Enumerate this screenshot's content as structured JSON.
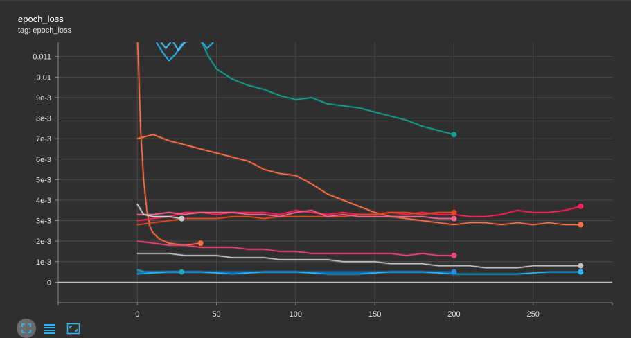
{
  "panel": {
    "title": "epoch_loss",
    "tag_line": "tag: epoch_loss"
  },
  "toolbar": {
    "buttons": [
      {
        "icon": "fullscreen-icon",
        "active": true
      },
      {
        "icon": "data-table-icon",
        "active": false
      },
      {
        "icon": "fit-domain-icon",
        "active": false
      }
    ],
    "accent": "#29b6f6"
  },
  "chart_data": {
    "type": "line",
    "title": "epoch_loss",
    "xlabel": "",
    "ylabel": "",
    "xlim": [
      -50,
      300
    ],
    "ylim": [
      -0.001,
      0.0117
    ],
    "grid": true,
    "x_ticks": [
      0,
      50,
      100,
      150,
      200,
      250
    ],
    "x_tick_labels": [
      "0",
      "50",
      "100",
      "150",
      "200",
      "250"
    ],
    "y_ticks": [
      0,
      0.001,
      0.002,
      0.003,
      0.004,
      0.005,
      0.006,
      0.007,
      0.008,
      0.009,
      0.01,
      0.011
    ],
    "y_tick_labels": [
      "0",
      "1e-3",
      "2e-3",
      "3e-3",
      "4e-3",
      "5e-3",
      "6e-3",
      "7e-3",
      "8e-3",
      "9e-3",
      "0.01",
      "0.011"
    ],
    "series": [
      {
        "color": "#12a192",
        "end_marker": true,
        "points": [
          [
            40,
            0.0118
          ],
          [
            45,
            0.011
          ],
          [
            50,
            0.0104
          ],
          [
            60,
            0.0099
          ],
          [
            70,
            0.0096
          ],
          [
            80,
            0.0094
          ],
          [
            90,
            0.0091
          ],
          [
            100,
            0.0089
          ],
          [
            110,
            0.009
          ],
          [
            120,
            0.0087
          ],
          [
            130,
            0.0086
          ],
          [
            140,
            0.0085
          ],
          [
            150,
            0.0083
          ],
          [
            160,
            0.0081
          ],
          [
            170,
            0.0079
          ],
          [
            180,
            0.0076
          ],
          [
            190,
            0.0074
          ],
          [
            200,
            0.0072
          ]
        ]
      },
      {
        "color": "#29b6f6",
        "end_marker": false,
        "points": [
          [
            12,
            0.0117
          ],
          [
            16,
            0.0112
          ],
          [
            20,
            0.0108
          ],
          [
            24,
            0.0111
          ],
          [
            28,
            0.0116
          ],
          [
            32,
            0.0118
          ],
          [
            36,
            0.0119
          ],
          [
            40,
            0.0118
          ],
          [
            44,
            0.0114
          ],
          [
            48,
            0.0117
          ]
        ]
      },
      {
        "color": "#4fc3f7",
        "end_marker": false,
        "points": [
          [
            14,
            0.0118
          ],
          [
            18,
            0.0114
          ],
          [
            22,
            0.0118
          ],
          [
            26,
            0.0113
          ],
          [
            30,
            0.0117
          ],
          [
            34,
            0.0119
          ]
        ]
      },
      {
        "color": "#ff7043",
        "end_marker": true,
        "points": [
          [
            0,
            0.007
          ],
          [
            5,
            0.0071
          ],
          [
            10,
            0.0072
          ],
          [
            20,
            0.0069
          ],
          [
            30,
            0.0067
          ],
          [
            40,
            0.0065
          ],
          [
            50,
            0.0063
          ],
          [
            60,
            0.0061
          ],
          [
            70,
            0.0059
          ],
          [
            80,
            0.0055
          ],
          [
            90,
            0.0053
          ],
          [
            100,
            0.0052
          ],
          [
            110,
            0.0048
          ],
          [
            120,
            0.0043
          ],
          [
            130,
            0.004
          ],
          [
            140,
            0.0037
          ],
          [
            150,
            0.0034
          ],
          [
            160,
            0.0032
          ],
          [
            170,
            0.0031
          ],
          [
            180,
            0.003
          ],
          [
            190,
            0.0029
          ],
          [
            200,
            0.0028
          ],
          [
            210,
            0.0029
          ],
          [
            220,
            0.0029
          ],
          [
            230,
            0.0028
          ],
          [
            240,
            0.0029
          ],
          [
            250,
            0.0028
          ],
          [
            260,
            0.0029
          ],
          [
            270,
            0.0028
          ],
          [
            280,
            0.0028
          ]
        ]
      },
      {
        "color": "#ff6e40",
        "end_marker": true,
        "points": [
          [
            0,
            0.012
          ],
          [
            1,
            0.01
          ],
          [
            2,
            0.0075
          ],
          [
            4,
            0.005
          ],
          [
            6,
            0.0035
          ],
          [
            8,
            0.0027
          ],
          [
            10,
            0.0024
          ],
          [
            14,
            0.0021
          ],
          [
            20,
            0.0019
          ],
          [
            30,
            0.0018
          ],
          [
            40,
            0.0019
          ]
        ]
      },
      {
        "color": "#ff1e56",
        "end_marker": true,
        "points": [
          [
            0,
            0.003
          ],
          [
            10,
            0.0031
          ],
          [
            20,
            0.0032
          ],
          [
            30,
            0.0034
          ],
          [
            40,
            0.0034
          ],
          [
            50,
            0.0033
          ],
          [
            60,
            0.0034
          ],
          [
            70,
            0.0034
          ],
          [
            80,
            0.0034
          ],
          [
            90,
            0.0033
          ],
          [
            100,
            0.0035
          ],
          [
            110,
            0.0034
          ],
          [
            120,
            0.0033
          ],
          [
            130,
            0.0034
          ],
          [
            140,
            0.0033
          ],
          [
            150,
            0.0033
          ],
          [
            160,
            0.0034
          ],
          [
            170,
            0.0033
          ],
          [
            180,
            0.0034
          ],
          [
            190,
            0.0033
          ],
          [
            200,
            0.0033
          ],
          [
            210,
            0.0032
          ],
          [
            220,
            0.0032
          ],
          [
            230,
            0.0033
          ],
          [
            240,
            0.0035
          ],
          [
            250,
            0.0034
          ],
          [
            260,
            0.0034
          ],
          [
            270,
            0.0035
          ],
          [
            280,
            0.0037
          ]
        ]
      },
      {
        "color": "#e64a19",
        "end_marker": true,
        "points": [
          [
            0,
            0.0028
          ],
          [
            10,
            0.0029
          ],
          [
            20,
            0.003
          ],
          [
            30,
            0.0031
          ],
          [
            40,
            0.0031
          ],
          [
            50,
            0.0031
          ],
          [
            60,
            0.0032
          ],
          [
            70,
            0.0032
          ],
          [
            80,
            0.0031
          ],
          [
            90,
            0.0032
          ],
          [
            100,
            0.0032
          ],
          [
            110,
            0.0032
          ],
          [
            120,
            0.0032
          ],
          [
            130,
            0.0032
          ],
          [
            140,
            0.0033
          ],
          [
            150,
            0.0033
          ],
          [
            160,
            0.0034
          ],
          [
            170,
            0.0034
          ],
          [
            180,
            0.0033
          ],
          [
            190,
            0.0034
          ],
          [
            200,
            0.0034
          ]
        ]
      },
      {
        "color": "#f06292",
        "end_marker": true,
        "points": [
          [
            0,
            0.0033
          ],
          [
            10,
            0.0033
          ],
          [
            20,
            0.0034
          ],
          [
            30,
            0.0033
          ],
          [
            40,
            0.0034
          ],
          [
            50,
            0.0034
          ],
          [
            60,
            0.0034
          ],
          [
            70,
            0.0033
          ],
          [
            80,
            0.0033
          ],
          [
            90,
            0.0032
          ],
          [
            100,
            0.0034
          ],
          [
            110,
            0.0035
          ],
          [
            120,
            0.0032
          ],
          [
            130,
            0.0033
          ],
          [
            140,
            0.0032
          ],
          [
            150,
            0.0032
          ],
          [
            160,
            0.0032
          ],
          [
            170,
            0.0032
          ],
          [
            180,
            0.0032
          ],
          [
            190,
            0.0031
          ],
          [
            200,
            0.0031
          ]
        ]
      },
      {
        "color": "#ec407a",
        "end_marker": true,
        "points": [
          [
            0,
            0.002
          ],
          [
            10,
            0.0019
          ],
          [
            20,
            0.0018
          ],
          [
            30,
            0.0018
          ],
          [
            40,
            0.0017
          ],
          [
            50,
            0.0017
          ],
          [
            60,
            0.0017
          ],
          [
            70,
            0.0016
          ],
          [
            80,
            0.0016
          ],
          [
            90,
            0.0015
          ],
          [
            100,
            0.0015
          ],
          [
            110,
            0.0014
          ],
          [
            120,
            0.0014
          ],
          [
            130,
            0.0014
          ],
          [
            140,
            0.0014
          ],
          [
            150,
            0.0014
          ],
          [
            160,
            0.0014
          ],
          [
            170,
            0.0013
          ],
          [
            180,
            0.0014
          ],
          [
            190,
            0.0013
          ],
          [
            200,
            0.0013
          ]
        ]
      },
      {
        "color": "#cfcfcf",
        "end_marker": true,
        "points": [
          [
            0,
            0.0038
          ],
          [
            4,
            0.0033
          ],
          [
            10,
            0.0032
          ],
          [
            20,
            0.0032
          ],
          [
            28,
            0.0031
          ]
        ]
      },
      {
        "color": "#bdbdbd",
        "end_marker": true,
        "points": [
          [
            0,
            0.0014
          ],
          [
            10,
            0.0014
          ],
          [
            20,
            0.0014
          ],
          [
            30,
            0.0013
          ],
          [
            40,
            0.0013
          ],
          [
            50,
            0.0013
          ],
          [
            60,
            0.0012
          ],
          [
            70,
            0.0012
          ],
          [
            80,
            0.0012
          ],
          [
            90,
            0.0011
          ],
          [
            100,
            0.0011
          ],
          [
            110,
            0.0011
          ],
          [
            120,
            0.0011
          ],
          [
            130,
            0.001
          ],
          [
            140,
            0.001
          ],
          [
            150,
            0.001
          ],
          [
            160,
            0.0009
          ],
          [
            170,
            0.0009
          ],
          [
            180,
            0.0009
          ],
          [
            190,
            0.0008
          ],
          [
            200,
            0.0008
          ],
          [
            210,
            0.0008
          ],
          [
            220,
            0.0007
          ],
          [
            230,
            0.0007
          ],
          [
            240,
            0.0007
          ],
          [
            250,
            0.0008
          ],
          [
            260,
            0.0008
          ],
          [
            270,
            0.0008
          ],
          [
            280,
            0.0008
          ]
        ]
      },
      {
        "color": "#26a69a",
        "end_marker": true,
        "points": [
          [
            0,
            0.0006
          ],
          [
            5,
            0.0005
          ],
          [
            10,
            0.0005
          ],
          [
            15,
            0.0005
          ],
          [
            20,
            0.0005
          ],
          [
            25,
            0.0005
          ],
          [
            28,
            0.0005
          ]
        ]
      },
      {
        "color": "#1e88e5",
        "end_marker": true,
        "points": [
          [
            0,
            0.0005
          ],
          [
            20,
            0.0005
          ],
          [
            40,
            0.0005
          ],
          [
            60,
            0.0005
          ],
          [
            80,
            0.0005
          ],
          [
            100,
            0.0005
          ],
          [
            120,
            0.0005
          ],
          [
            140,
            0.0005
          ],
          [
            160,
            0.0005
          ],
          [
            180,
            0.0005
          ],
          [
            200,
            0.0005
          ]
        ]
      },
      {
        "color": "#29b6f6",
        "end_marker": true,
        "points": [
          [
            0,
            0.0004
          ],
          [
            20,
            0.0005
          ],
          [
            40,
            0.0005
          ],
          [
            60,
            0.0004
          ],
          [
            80,
            0.0005
          ],
          [
            100,
            0.0005
          ],
          [
            120,
            0.0004
          ],
          [
            140,
            0.0004
          ],
          [
            160,
            0.0005
          ],
          [
            180,
            0.0005
          ],
          [
            200,
            0.0004
          ],
          [
            220,
            0.0004
          ],
          [
            240,
            0.0004
          ],
          [
            260,
            0.0005
          ],
          [
            280,
            0.0005
          ]
        ]
      }
    ]
  }
}
